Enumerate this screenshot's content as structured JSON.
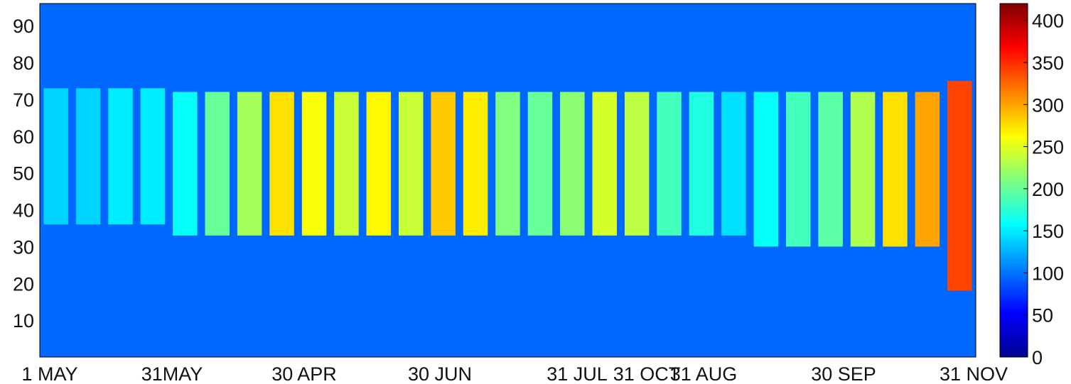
{
  "chart_data": {
    "type": "heatmap",
    "title": "",
    "xlabel": "",
    "ylabel": "",
    "ylim": [
      0,
      96
    ],
    "yticks": [
      10,
      20,
      30,
      40,
      50,
      60,
      70,
      80,
      90
    ],
    "xtick_labels": [
      "1 MAY",
      "31MAY",
      "30 APR",
      "30 JUN",
      "31 JUL",
      "31 OCT",
      "31 AUG",
      "30 SEP",
      "31 NOV"
    ],
    "colorbar": {
      "colormap": "jet",
      "range": [
        0,
        420
      ],
      "ticks": [
        0,
        50,
        100,
        150,
        200,
        250,
        300,
        350,
        400
      ]
    },
    "background_value": 95,
    "bands": [
      {
        "index": 0,
        "from": 36,
        "to": 73,
        "value": 140
      },
      {
        "index": 1,
        "from": 36,
        "to": 73,
        "value": 140
      },
      {
        "index": 2,
        "from": 36,
        "to": 73,
        "value": 150
      },
      {
        "index": 3,
        "from": 36,
        "to": 73,
        "value": 150
      },
      {
        "index": 4,
        "from": 33,
        "to": 72,
        "value": 160
      },
      {
        "index": 5,
        "from": 33,
        "to": 72,
        "value": 200
      },
      {
        "index": 6,
        "from": 33,
        "to": 72,
        "value": 225
      },
      {
        "index": 7,
        "from": 33,
        "to": 72,
        "value": 275
      },
      {
        "index": 8,
        "from": 33,
        "to": 72,
        "value": 260
      },
      {
        "index": 9,
        "from": 33,
        "to": 72,
        "value": 240
      },
      {
        "index": 10,
        "from": 33,
        "to": 72,
        "value": 265
      },
      {
        "index": 11,
        "from": 33,
        "to": 72,
        "value": 240
      },
      {
        "index": 12,
        "from": 33,
        "to": 72,
        "value": 285
      },
      {
        "index": 13,
        "from": 33,
        "to": 72,
        "value": 270
      },
      {
        "index": 14,
        "from": 33,
        "to": 72,
        "value": 210
      },
      {
        "index": 15,
        "from": 33,
        "to": 72,
        "value": 200
      },
      {
        "index": 16,
        "from": 33,
        "to": 72,
        "value": 215
      },
      {
        "index": 17,
        "from": 33,
        "to": 72,
        "value": 245
      },
      {
        "index": 18,
        "from": 33,
        "to": 72,
        "value": 235
      },
      {
        "index": 19,
        "from": 33,
        "to": 72,
        "value": 185
      },
      {
        "index": 20,
        "from": 33,
        "to": 72,
        "value": 170
      },
      {
        "index": 21,
        "from": 33,
        "to": 72,
        "value": 145
      },
      {
        "index": 22,
        "from": 30,
        "to": 72,
        "value": 160
      },
      {
        "index": 23,
        "from": 30,
        "to": 72,
        "value": 185
      },
      {
        "index": 24,
        "from": 30,
        "to": 72,
        "value": 195
      },
      {
        "index": 25,
        "from": 30,
        "to": 72,
        "value": 230
      },
      {
        "index": 26,
        "from": 30,
        "to": 72,
        "value": 275
      },
      {
        "index": 27,
        "from": 30,
        "to": 72,
        "value": 300
      },
      {
        "index": 28,
        "from": 18,
        "to": 75,
        "value": 340
      }
    ]
  }
}
